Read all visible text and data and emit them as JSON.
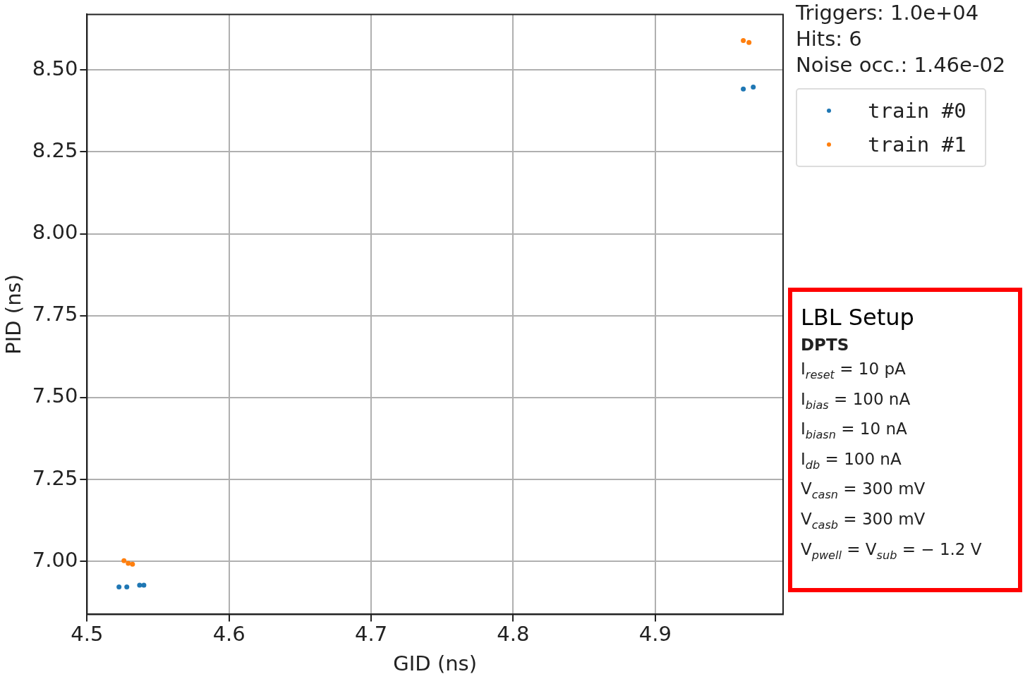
{
  "chart_data": {
    "type": "scatter",
    "xlabel": "GID (ns)",
    "ylabel": "PID (ns)",
    "xlim": [
      4.5,
      4.99
    ],
    "xticks": [
      4.5,
      4.6,
      4.7,
      4.8,
      4.9
    ],
    "ylim": [
      6.838,
      8.67
    ],
    "yticks": [
      {
        "value": 7,
        "label": "7.00"
      },
      {
        "value": 7.25,
        "label": "7.25"
      },
      {
        "value": 7.5,
        "label": "7.50"
      },
      {
        "value": 7.75,
        "label": "7.75"
      },
      {
        "value": 8,
        "label": "8.00"
      },
      {
        "value": 8.25,
        "label": "8.25"
      },
      {
        "value": 8.5,
        "label": "8.50"
      }
    ],
    "grid": true,
    "legend": "top right",
    "marker": "circle",
    "series": [
      {
        "name": "train #0",
        "color": "#1f77b4",
        "x": [
          4.5225,
          4.528,
          4.537,
          4.54,
          4.962,
          4.969
        ],
        "values": [
          6.922,
          6.922,
          6.927,
          6.927,
          8.442,
          8.448
        ]
      },
      {
        "name": "train #1",
        "color": "#ff7f0e",
        "x": [
          4.526,
          4.529,
          4.532,
          4.962,
          4.966
        ],
        "values": [
          7.002,
          6.994,
          6.991,
          8.59,
          8.584
        ]
      }
    ],
    "annotations": [
      "Triggers: 1.0e+04",
      "Hits: 6",
      "Noise occ.: 1.46e-02",
      "LBL Setup",
      "DPTS",
      "I$_{reset}$ = 10 pA",
      "I$_{bias}$ = 100 nA",
      "I$_{biasn}$ = 10 nA",
      "I$_{db}$ = 100 nA",
      "V$_{casn}$ = 300 mV",
      "V$_{casb}$ = 300 mV",
      "V$_{pwell}$ = V$_{sub}$ = − 1.2 V"
    ]
  }
}
